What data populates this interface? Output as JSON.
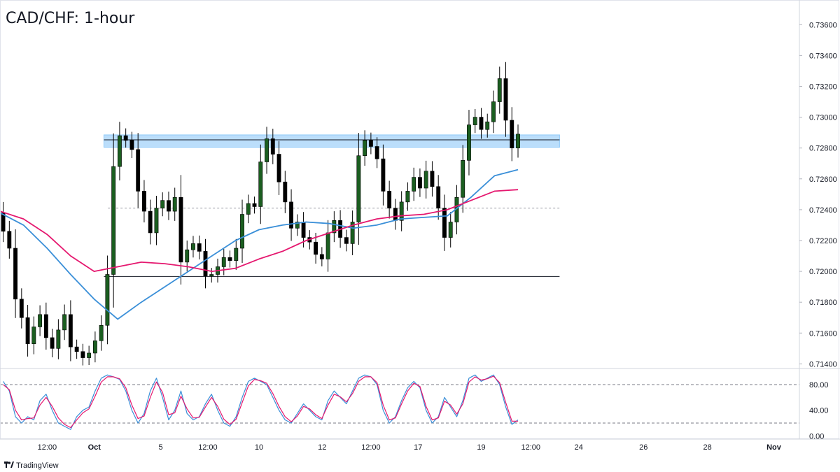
{
  "header": {
    "title": "CAD/CHF: 1-hour"
  },
  "footer": {
    "brand": "TradingView"
  },
  "colors": {
    "up_candle": "#1b5e20",
    "down_candle": "#000000",
    "wick": "#000000",
    "ma_fast": "#3a8fd8",
    "ma_slow": "#e5186f",
    "zone_fill": "#bbdefb",
    "stoch_k": "#3a8fd8",
    "stoch_d": "#e5186f",
    "grid": "#e0e3eb"
  },
  "chart_data": [
    {
      "type": "candlestick",
      "title": "CAD/CHF: 1-hour",
      "y_ticks": [
        "0.73600",
        "0.73400",
        "0.73200",
        "0.73000",
        "0.72800",
        "0.72600",
        "0.72400",
        "0.72200",
        "0.72000",
        "0.71800",
        "0.71600",
        "0.71400"
      ],
      "ylim": [
        0.7137,
        0.7376
      ],
      "x_ticks": [
        "12:00",
        "Oct",
        "5",
        "12:00",
        "10",
        "12",
        "12:00",
        "17",
        "19",
        "12:00",
        "24",
        "26",
        "28",
        "Nov"
      ],
      "xlim": [
        0,
        100
      ],
      "x_tick_positions": [
        5.9,
        11.8,
        20.1,
        26.0,
        32.4,
        40.3,
        46.4,
        52.3,
        60.2,
        66.4,
        72.4,
        80.5,
        88.5,
        96.8
      ],
      "closes": [
        0.7226,
        0.7215,
        0.7182,
        0.717,
        0.7153,
        0.7164,
        0.7172,
        0.7157,
        0.715,
        0.7162,
        0.7172,
        0.7151,
        0.7148,
        0.7144,
        0.7147,
        0.7155,
        0.7165,
        0.7198,
        0.7268,
        0.7288,
        0.7285,
        0.7279,
        0.7252,
        0.7239,
        0.7225,
        0.7241,
        0.7246,
        0.7239,
        0.7248,
        0.7206,
        0.7214,
        0.7218,
        0.7213,
        0.7197,
        0.7198,
        0.7203,
        0.7209,
        0.7207,
        0.7215,
        0.7237,
        0.7244,
        0.7242,
        0.7271,
        0.7286,
        0.7276,
        0.7258,
        0.7245,
        0.7228,
        0.7232,
        0.7222,
        0.7219,
        0.7211,
        0.7208,
        0.7225,
        0.7233,
        0.7222,
        0.7218,
        0.7232,
        0.7275,
        0.7285,
        0.7281,
        0.7273,
        0.7252,
        0.7241,
        0.7233,
        0.7245,
        0.7252,
        0.7261,
        0.7254,
        0.7265,
        0.7255,
        0.7241,
        0.7222,
        0.7232,
        0.7248,
        0.7272,
        0.7295,
        0.73,
        0.7292,
        0.7297,
        0.731,
        0.7325,
        0.7298,
        0.728,
        0.7289
      ],
      "x_range_candles": [
        0.4,
        64.8
      ],
      "horizontal_levels": [
        0.72853,
        0.71967
      ],
      "dashed_level": 0.7241,
      "zone": {
        "low": 0.72805,
        "high": 0.72885,
        "x_start": 13.0,
        "x_end": 70.0
      },
      "series": [
        {
          "values": [
            0.7238,
            0.723,
            0.7215,
            0.7198,
            0.7182,
            0.7169,
            0.718,
            0.719,
            0.72,
            0.721,
            0.722,
            0.7227,
            0.723,
            0.7232,
            0.7231,
            0.7228,
            0.723,
            0.7234,
            0.7235,
            0.7236,
            0.7248,
            0.7262,
            0.7266
          ]
        },
        {
          "values": [
            0.7239,
            0.7234,
            0.7224,
            0.721,
            0.72,
            0.7203,
            0.7206,
            0.7205,
            0.7203,
            0.72,
            0.7202,
            0.7208,
            0.7213,
            0.722,
            0.7225,
            0.723,
            0.7234,
            0.7236,
            0.7237,
            0.724,
            0.7246,
            0.7252,
            0.7253
          ]
        }
      ]
    },
    {
      "type": "line",
      "y_ticks": [
        "80.00",
        "40.00",
        "0.00"
      ],
      "ylim": [
        -5,
        105
      ],
      "levels": [
        80,
        20
      ],
      "series": [
        {
          "values": [
            85,
            70,
            30,
            20,
            30,
            25,
            55,
            65,
            40,
            20,
            15,
            10,
            30,
            40,
            45,
            70,
            90,
            95,
            92,
            88,
            70,
            40,
            20,
            35,
            70,
            90,
            60,
            25,
            40,
            70,
            35,
            25,
            30,
            50,
            65,
            40,
            20,
            15,
            30,
            60,
            85,
            90,
            85,
            80,
            60,
            40,
            25,
            20,
            35,
            50,
            40,
            30,
            25,
            55,
            70,
            60,
            50,
            70,
            90,
            95,
            92,
            80,
            40,
            20,
            30,
            55,
            75,
            85,
            75,
            40,
            20,
            30,
            60,
            45,
            30,
            55,
            90,
            95,
            85,
            90,
            95,
            80,
            45,
            18,
            25
          ]
        },
        {
          "values": [
            80,
            72,
            40,
            25,
            27,
            28,
            48,
            60,
            46,
            28,
            18,
            13,
            25,
            36,
            42,
            62,
            84,
            92,
            92,
            89,
            75,
            48,
            27,
            31,
            60,
            84,
            68,
            33,
            36,
            62,
            42,
            28,
            29,
            45,
            60,
            46,
            26,
            18,
            26,
            52,
            78,
            88,
            86,
            82,
            66,
            46,
            30,
            22,
            31,
            46,
            42,
            33,
            27,
            48,
            65,
            61,
            53,
            66,
            85,
            92,
            92,
            83,
            48,
            25,
            28,
            50,
            70,
            82,
            77,
            46,
            25,
            28,
            54,
            48,
            34,
            50,
            84,
            92,
            87,
            89,
            93,
            83,
            52,
            23,
            23
          ]
        }
      ]
    }
  ]
}
